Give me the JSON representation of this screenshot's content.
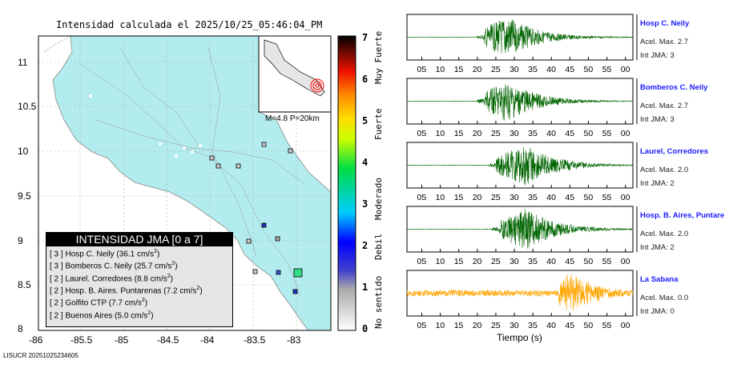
{
  "map": {
    "title": "Intensidad calculada el 2025/10/25_05:46:04_PM",
    "x_ticks": [
      "-86",
      "-85.5",
      "-85",
      "-84.5",
      "-84",
      "-83.5",
      "-83"
    ],
    "y_ticks": [
      "11",
      "10.5",
      "10",
      "9.5",
      "9",
      "8.5",
      "8"
    ],
    "inset_label": "M=4.8 P=20km",
    "footer": "LISUCR 20251025234605",
    "legend": {
      "title": "INTENSIDAD JMA [0 a 7]",
      "items": [
        {
          "int": "[ 3 ]",
          "text": "Hosp C. Neily (36.1 cm/s",
          "sup": "2",
          "end": ")"
        },
        {
          "int": "[ 3 ]",
          "text": "Bomberos C. Neily (25.7 cm/s",
          "sup": "2",
          "end": ")"
        },
        {
          "int": "[ 2 ]",
          "text": "Laurel. Corredores (8.8 cm/s",
          "sup": "2",
          "end": ")"
        },
        {
          "int": "[ 2 ]",
          "text": "Hosp. B. Aires. Puntarenas (7.2 cm/s",
          "sup": "2",
          "end": ")"
        },
        {
          "int": "[ 2 ]",
          "text": "Golfito CTP (7.7 cm/s",
          "sup": "2",
          "end": ")"
        },
        {
          "int": "[ 2 ]",
          "text": "Buenos Aires (5.0 cm/s",
          "sup": "2",
          "end": ")"
        }
      ]
    }
  },
  "colorbar": {
    "ticks": [
      "0",
      "1",
      "2",
      "3",
      "4",
      "5",
      "6",
      "7"
    ],
    "labels": [
      "No sentido",
      "Debil",
      "Moderado",
      "Fuerte",
      "Muy Fuerte"
    ]
  },
  "waveforms": {
    "x_ticks": [
      "05",
      "10",
      "15",
      "20",
      "25",
      "30",
      "35",
      "40",
      "45",
      "50",
      "55",
      "00"
    ],
    "xlabel": "Tiempo (s)",
    "stations": [
      {
        "name": "Hosp C. Neily",
        "acel": "Acel. Max. 2.7",
        "int": "Int JMA: 3",
        "onset": 20,
        "peak": 28,
        "color": "#006400",
        "noise": 0.01
      },
      {
        "name": "Bomberos C. Neily",
        "acel": "Acel. Max. 2.7",
        "int": "Int JMA: 3",
        "onset": 20,
        "peak": 28,
        "color": "#006400",
        "noise": 0.01
      },
      {
        "name": "Laurel, Corredores",
        "acel": "Acel. Max. 2.0",
        "int": "Int JMA: 2",
        "onset": 23,
        "peak": 33,
        "color": "#006400",
        "noise": 0.01
      },
      {
        "name": "Hosp. B. Aires, Puntare",
        "acel": "Acel. Max. 2.0",
        "int": "Int JMA: 2",
        "onset": 24,
        "peak": 33,
        "color": "#006400",
        "noise": 0.01
      },
      {
        "name": "La Sabana",
        "acel": "Acel. Max. 0.0",
        "int": "Int JMA: 0",
        "onset": 40,
        "peak": 45,
        "color": "#ffa500",
        "noise": 0.15
      }
    ]
  }
}
